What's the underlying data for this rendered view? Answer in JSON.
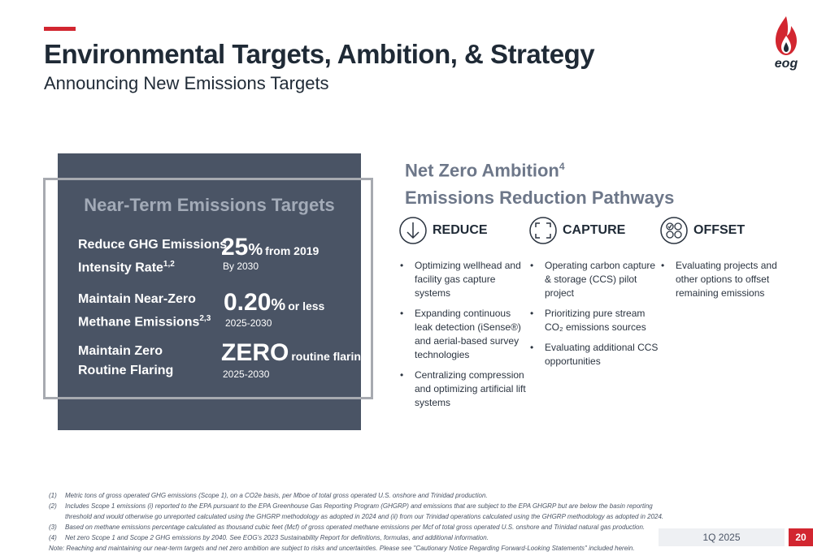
{
  "header": {
    "title": "Environmental Targets, Ambition, & Strategy",
    "subtitle": "Announcing New Emissions Targets",
    "logo_text": "eog",
    "accent_color": "#d22630"
  },
  "targets_panel": {
    "title": "Near-Term Emissions Targets",
    "items": [
      {
        "label_line1": "Reduce GHG Emissions",
        "label_line2": "Intensity Rate",
        "label_sup": "1,2",
        "value": "25",
        "value_unit": "%",
        "value_suffix": "from 2019",
        "period": "By 2030"
      },
      {
        "label_line1": "Maintain Near-Zero",
        "label_line2": "Methane Emissions",
        "label_sup": "2,3",
        "value": "0.20",
        "value_unit": "%",
        "value_suffix": "or less",
        "period": "2025-2030"
      },
      {
        "label_line1": "Maintain Zero",
        "label_line2": "Routine Flaring",
        "label_sup": "",
        "value": "ZERO",
        "value_unit": "",
        "value_suffix": "routine flaring",
        "period": "2025-2030"
      }
    ]
  },
  "ambition": {
    "line1": "Net Zero Ambition",
    "line1_sup": "4",
    "line2": "Emissions Reduction Pathways"
  },
  "pathways": [
    {
      "title": "REDUCE",
      "icon": "down-arrow-circle-icon",
      "bullets": [
        "Optimizing wellhead and facility gas capture systems",
        "Expanding continuous leak detection (iSense®) and aerial-based survey technologies",
        "Centralizing compression and optimizing artificial lift systems"
      ]
    },
    {
      "title": "CAPTURE",
      "icon": "capture-frame-icon",
      "bullets": [
        "Operating carbon capture & storage (CCS) pilot project",
        "Prioritizing pure stream CO₂ emissions sources",
        "Evaluating additional CCS opportunities"
      ]
    },
    {
      "title": "OFFSET",
      "icon": "offset-circles-icon",
      "bullets": [
        "Evaluating projects and other options to offset remaining emissions"
      ]
    }
  ],
  "footnotes": [
    {
      "num": "(1)",
      "text": "Metric tons of gross operated GHG emissions (Scope 1), on a CO2e basis, per Mboe of total gross operated U.S. onshore and Trinidad production."
    },
    {
      "num": "(2)",
      "text": "Includes Scope 1 emissions (i) reported to the EPA pursuant to the EPA Greenhouse Gas Reporting Program (GHGRP) and emissions that are subject to the EPA GHGRP but are below the basin reporting threshold and would otherwise go unreported calculated using the GHGRP methodology as adopted in 2024 and (ii) from our Trinidad operations calculated using the GHGRP methodology as adopted in 2024."
    },
    {
      "num": "(3)",
      "text": "Based on methane emissions percentage calculated as thousand cubic feet (Mcf) of gross operated methane emissions per Mcf of total gross operated U.S. onshore and Trinidad natural gas production."
    },
    {
      "num": "(4)",
      "text": "Net zero Scope 1 and Scope 2 GHG emissions by 2040. See EOG's 2023 Sustainability Report for definitions, formulas, and additional information."
    }
  ],
  "note": "Note: Reaching and maintaining our near-term targets and net zero ambition are subject to risks and uncertainties. Please see \"Cautionary Notice Regarding Forward-Looking Statements\" included herein.",
  "footer": {
    "date": "1Q 2025",
    "page": "20"
  }
}
